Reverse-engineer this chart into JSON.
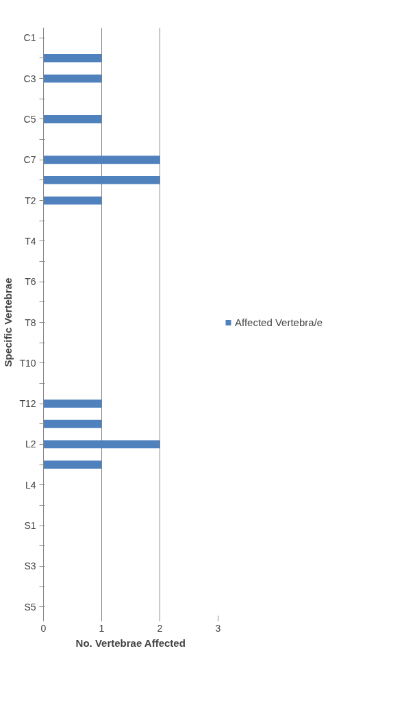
{
  "chart_data": {
    "type": "bar",
    "orientation": "horizontal",
    "xlabel": "No. Vertebrae Affected",
    "ylabel": "Specific Vertebrae",
    "categories": [
      "C1",
      null,
      "C3",
      null,
      "C5",
      null,
      "C7",
      null,
      "T2",
      null,
      "T4",
      null,
      "T6",
      null,
      "T8",
      null,
      "T10",
      null,
      "T12",
      null,
      "L2",
      null,
      "L4",
      null,
      "S1",
      null,
      "S3",
      null,
      "S5"
    ],
    "series": [
      {
        "name": "Affected Vertebra/e",
        "color": "#4f81bd",
        "values": [
          0,
          1,
          1,
          0,
          1,
          0,
          2,
          2,
          1,
          0,
          0,
          0,
          0,
          0,
          0,
          0,
          0,
          0,
          1,
          1,
          2,
          1,
          0,
          0,
          0,
          0,
          0,
          0,
          0
        ]
      }
    ],
    "xlim": [
      0,
      3
    ],
    "xticks": [
      0,
      1,
      2,
      3
    ],
    "grid": "x",
    "legend": "right"
  }
}
